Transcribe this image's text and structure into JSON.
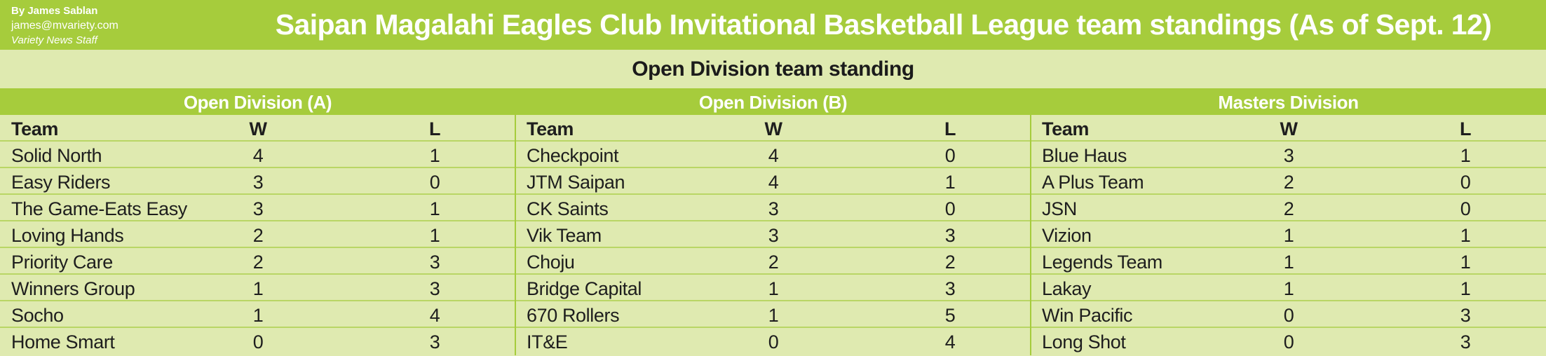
{
  "byline": {
    "author": "By James Sablan",
    "email": "james@mvariety.com",
    "staff": "Variety News Staff"
  },
  "title": "Saipan Magalahi Eagles Club Invitational Basketball League team standings (As of Sept. 12)",
  "section_title": "Open Division team standing",
  "headers": {
    "team": "Team",
    "w": "W",
    "l": "L"
  },
  "divisions": [
    {
      "name": "Open Division (A)",
      "teams": [
        {
          "team": "Solid North",
          "w": "4",
          "l": "1"
        },
        {
          "team": "Easy Riders",
          "w": "3",
          "l": "0"
        },
        {
          "team": "The Game-Eats Easy",
          "w": "3",
          "l": "1"
        },
        {
          "team": "Loving Hands",
          "w": "2",
          "l": "1"
        },
        {
          "team": "Priority Care",
          "w": "2",
          "l": "3"
        },
        {
          "team": "Winners Group",
          "w": "1",
          "l": "3"
        },
        {
          "team": "Socho",
          "w": "1",
          "l": "4"
        },
        {
          "team": "Home Smart",
          "w": "0",
          "l": "3"
        }
      ]
    },
    {
      "name": "Open Division (B)",
      "teams": [
        {
          "team": "Checkpoint",
          "w": "4",
          "l": "0"
        },
        {
          "team": "JTM Saipan",
          "w": "4",
          "l": "1"
        },
        {
          "team": "CK Saints",
          "w": "3",
          "l": "0"
        },
        {
          "team": "Vik Team",
          "w": "3",
          "l": "3"
        },
        {
          "team": "Choju",
          "w": "2",
          "l": "2"
        },
        {
          "team": "Bridge Capital",
          "w": "1",
          "l": "3"
        },
        {
          "team": "670 Rollers",
          "w": "1",
          "l": "5"
        },
        {
          "team": "IT&E",
          "w": "0",
          "l": "4"
        }
      ]
    },
    {
      "name": "Masters Division",
      "teams": [
        {
          "team": "Blue Haus",
          "w": "3",
          "l": "1"
        },
        {
          "team": "A Plus Team",
          "w": "2",
          "l": "0"
        },
        {
          "team": "JSN",
          "w": "2",
          "l": "0"
        },
        {
          "team": "Vizion",
          "w": "1",
          "l": "1"
        },
        {
          "team": "Legends Team",
          "w": "1",
          "l": "1"
        },
        {
          "team": "Lakay",
          "w": "1",
          "l": "1"
        },
        {
          "team": "Win Pacific",
          "w": "0",
          "l": "3"
        },
        {
          "team": "Long Shot",
          "w": "0",
          "l": "3"
        }
      ]
    }
  ]
}
